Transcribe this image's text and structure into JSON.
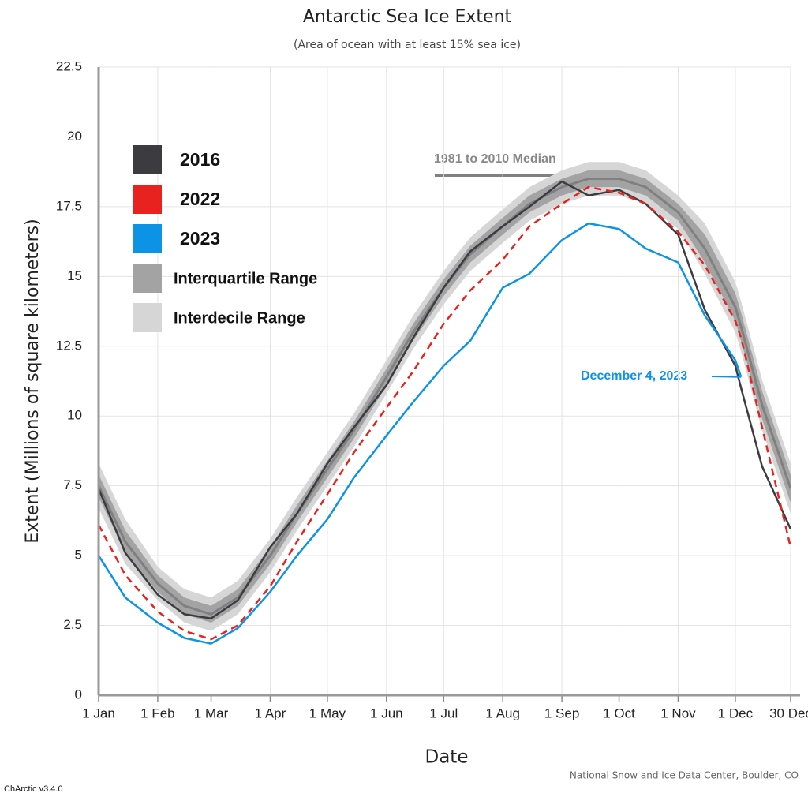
{
  "chart_data": {
    "type": "line",
    "title": "Antarctic Sea Ice Extent",
    "subtitle": "(Area of ocean with at least 15% sea ice)",
    "x_label": "Date",
    "y_label": "Extent (Millions of square kilometers)",
    "source": "National Snow and Ice Data Center, Boulder, CO",
    "version": "ChArctic v3.4.0",
    "x": [
      "01-01",
      "01-15",
      "02-01",
      "02-15",
      "03-01",
      "03-15",
      "04-01",
      "04-15",
      "05-01",
      "05-15",
      "06-01",
      "06-15",
      "07-01",
      "07-15",
      "08-01",
      "08-15",
      "09-01",
      "09-15",
      "10-01",
      "10-15",
      "11-01",
      "11-15",
      "12-01",
      "12-04",
      "12-15",
      "12-30"
    ],
    "xticks": [
      {
        "value": "01-01",
        "label": "1 Jan"
      },
      {
        "value": "02-01",
        "label": "1 Feb"
      },
      {
        "value": "03-01",
        "label": "1 Mar"
      },
      {
        "value": "04-01",
        "label": "1 Apr"
      },
      {
        "value": "05-01",
        "label": "1 May"
      },
      {
        "value": "06-01",
        "label": "1 Jun"
      },
      {
        "value": "07-01",
        "label": "1 Jul"
      },
      {
        "value": "08-01",
        "label": "1 Aug"
      },
      {
        "value": "09-01",
        "label": "1 Sep"
      },
      {
        "value": "10-01",
        "label": "1 Oct"
      },
      {
        "value": "11-01",
        "label": "1 Nov"
      },
      {
        "value": "12-01",
        "label": "1 Dec"
      },
      {
        "value": "12-30",
        "label": "30 Dec"
      }
    ],
    "ylim": [
      0,
      22.5
    ],
    "yticks": [
      0,
      2.5,
      5,
      7.5,
      10,
      12.5,
      15,
      17.5,
      20,
      22.5
    ],
    "grid": true,
    "bands": [
      {
        "name": "Interdecile Range",
        "color": "#d6d6d6",
        "low": [
          6.7,
          4.7,
          3.4,
          2.6,
          2.3,
          2.9,
          4.4,
          5.9,
          7.5,
          8.9,
          10.8,
          12.4,
          14.0,
          15.2,
          16.2,
          17.0,
          17.6,
          17.9,
          17.9,
          17.6,
          16.7,
          15.1,
          13.0,
          12.3,
          9.5,
          6.5
        ],
        "high": [
          8.3,
          6.3,
          4.6,
          3.8,
          3.5,
          4.1,
          5.6,
          7.1,
          8.7,
          10.1,
          12.0,
          13.6,
          15.2,
          16.4,
          17.4,
          18.2,
          18.8,
          19.1,
          19.1,
          18.8,
          17.9,
          16.9,
          14.8,
          14.1,
          11.3,
          8.3
        ]
      },
      {
        "name": "Interquartile Range",
        "color": "#a3a3a3",
        "low": [
          7.1,
          5.1,
          3.7,
          2.9,
          2.6,
          3.2,
          4.7,
          6.2,
          7.8,
          9.2,
          11.1,
          12.7,
          14.3,
          15.5,
          16.5,
          17.3,
          17.9,
          18.2,
          18.2,
          17.9,
          17.0,
          15.5,
          13.4,
          12.7,
          9.9,
          6.9
        ],
        "high": [
          7.9,
          5.9,
          4.3,
          3.5,
          3.2,
          3.8,
          5.3,
          6.8,
          8.4,
          9.8,
          11.7,
          13.3,
          14.9,
          16.1,
          17.1,
          17.9,
          18.5,
          18.8,
          18.8,
          18.5,
          17.6,
          16.5,
          14.4,
          13.7,
          10.9,
          7.9
        ]
      }
    ],
    "median": {
      "label": "1981 to 2010 Median",
      "color": "#808080",
      "values": [
        7.5,
        5.5,
        4.0,
        3.2,
        2.9,
        3.5,
        5.0,
        6.5,
        8.1,
        9.5,
        11.4,
        13.0,
        14.6,
        15.8,
        16.8,
        17.6,
        18.2,
        18.5,
        18.5,
        18.2,
        17.3,
        16.0,
        13.9,
        13.2,
        10.4,
        7.4
      ]
    },
    "series": [
      {
        "name": "2016",
        "color": "#3b3b40",
        "values": [
          7.4,
          5.1,
          3.6,
          2.9,
          2.75,
          3.4,
          5.3,
          6.5,
          8.3,
          9.6,
          11.1,
          12.8,
          14.6,
          15.9,
          16.8,
          17.5,
          18.4,
          17.9,
          18.1,
          17.6,
          16.5,
          13.8,
          11.8,
          11.0,
          8.2,
          5.95
        ]
      },
      {
        "name": "2022",
        "color": "#e8221e",
        "dash": true,
        "values": [
          6.1,
          4.3,
          3.0,
          2.3,
          2.0,
          2.5,
          3.9,
          5.5,
          7.2,
          8.7,
          10.3,
          11.6,
          13.3,
          14.5,
          15.6,
          16.8,
          17.6,
          18.2,
          18.0,
          17.6,
          16.6,
          15.4,
          13.4,
          12.8,
          9.6,
          5.3
        ]
      },
      {
        "name": "2023",
        "color": "#0d93e6",
        "values": [
          5.0,
          3.5,
          2.6,
          2.05,
          1.85,
          2.4,
          3.7,
          5.0,
          6.3,
          7.8,
          9.3,
          10.5,
          11.8,
          12.7,
          14.6,
          15.1,
          16.3,
          16.9,
          16.7,
          16.0,
          15.5,
          13.6,
          12.0,
          11.4,
          null,
          null
        ]
      }
    ],
    "annotation": {
      "text": "December 4, 2023",
      "series": 2,
      "point": 23
    }
  }
}
